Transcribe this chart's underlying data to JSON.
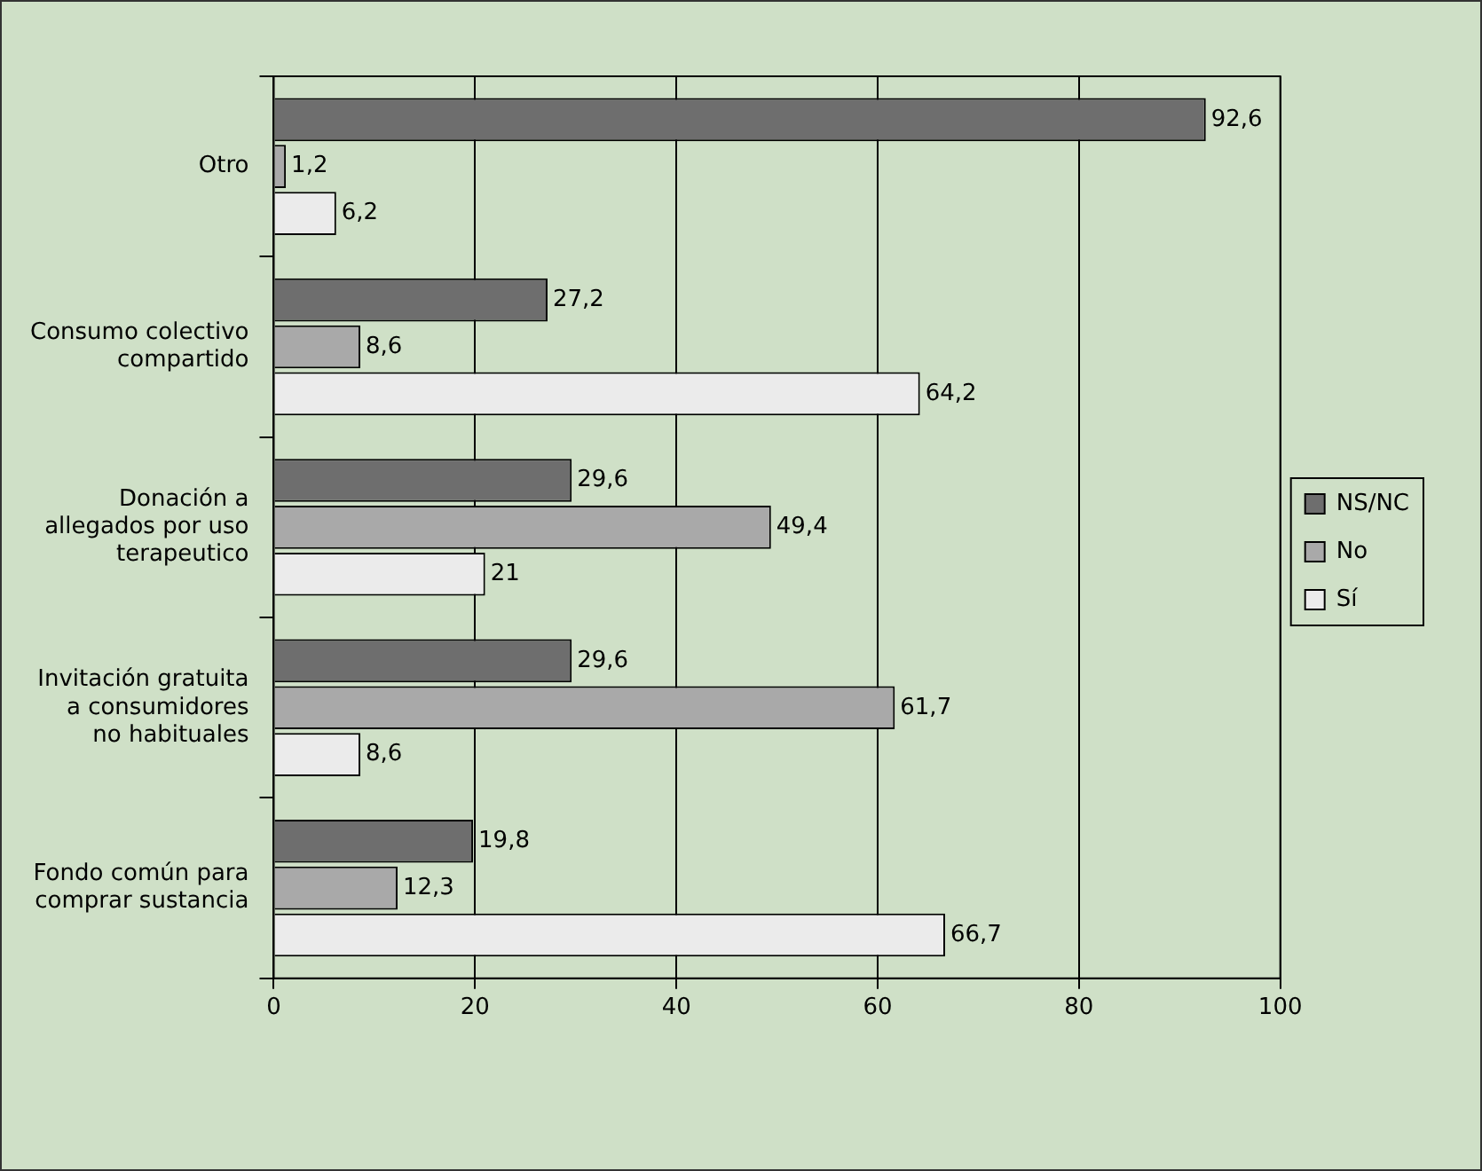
{
  "chart_data": {
    "type": "bar",
    "orientation": "horizontal",
    "categories": [
      "Otro",
      "Consumo colectivo\ncompartido",
      "Donación a\nallegados por uso\nterapeutico",
      "Invitación gratuita\na consumidores\nno habituales",
      "Fondo común para\ncomprar sustancia"
    ],
    "series": [
      {
        "name": "NS/NC",
        "color": "#6e6e6e",
        "values": [
          92.6,
          27.2,
          29.6,
          29.6,
          19.8
        ],
        "value_labels": [
          "92,6",
          "27,2",
          "29,6",
          "29,6",
          "19,8"
        ]
      },
      {
        "name": "No",
        "color": "#a9a9a9",
        "values": [
          1.2,
          8.6,
          49.4,
          61.7,
          12.3
        ],
        "value_labels": [
          "1,2",
          "8,6",
          "49,4",
          "61,7",
          "12,3"
        ]
      },
      {
        "name": "Sí",
        "color": "#ebebeb",
        "values": [
          6.2,
          64.2,
          21,
          8.6,
          66.7
        ],
        "value_labels": [
          "6,2",
          "64,2",
          "21",
          "8,6",
          "66,7"
        ]
      }
    ],
    "xlim": [
      0,
      100
    ],
    "xticks": [
      0,
      20,
      40,
      60,
      80,
      100
    ],
    "grid": "x",
    "legend": "right"
  }
}
